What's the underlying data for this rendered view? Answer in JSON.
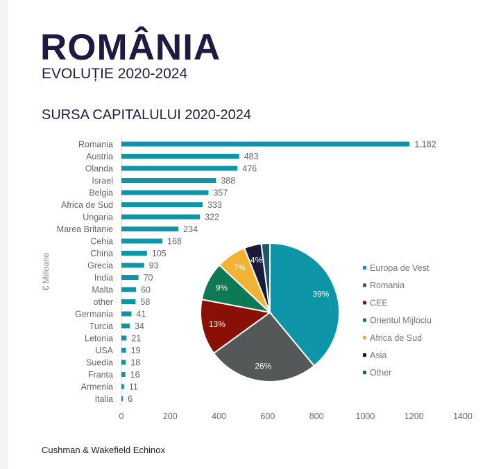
{
  "header": {
    "title": "ROMÂNIA",
    "subtitle": "EVOLUȚIE 2020-2024"
  },
  "footer": {
    "source": "Cushman & Wakefield Echinox"
  },
  "colors": {
    "bar": "#0e95a8",
    "title": "#1e1a44"
  },
  "chart_data": [
    {
      "type": "bar",
      "orientation": "horizontal",
      "title": "SURSA CAPITALULUI 2020-2024",
      "ylabel": "€ Milioane",
      "xlabel": "",
      "categories": [
        "Romania",
        "Austria",
        "Olanda",
        "Israel",
        "Belgia",
        "Africa de Sud",
        "Ungaria",
        "Marea Britanie",
        "Cehia",
        "China",
        "Grecia",
        "India",
        "Malta",
        "other",
        "Germania",
        "Turcia",
        "Letonia",
        "USA",
        "Suedia",
        "Franta",
        "Armenia",
        "Italia"
      ],
      "values": [
        1182,
        483,
        476,
        388,
        357,
        333,
        322,
        234,
        168,
        105,
        93,
        70,
        60,
        58,
        41,
        34,
        21,
        19,
        18,
        16,
        11,
        6
      ],
      "value_labels": [
        "1,182",
        "483",
        "476",
        "388",
        "357",
        "333",
        "322",
        "234",
        "168",
        "105",
        "93",
        "70",
        "60",
        "58",
        "41",
        "34",
        "21",
        "19",
        "18",
        "16",
        "11",
        "6"
      ],
      "xlim": [
        0,
        1400
      ],
      "xticks": [
        "0",
        "200",
        "400",
        "600",
        "800",
        "1000",
        "1200",
        "1400"
      ]
    },
    {
      "type": "pie",
      "labels": [
        "Europa de Vest",
        "Romania",
        "CEE",
        "Orientul Mijlociu",
        "Africa de Sud",
        "Asia",
        "Other"
      ],
      "values": [
        39,
        26,
        13,
        9,
        7,
        4,
        2
      ],
      "value_labels": [
        "39%",
        "26%",
        "13%",
        "9%",
        "7%",
        "4%",
        ""
      ],
      "colors": [
        "#0e95a8",
        "#555859",
        "#8a0f05",
        "#0e7a55",
        "#f2b234",
        "#1b1a3d",
        "#135b6e"
      ],
      "legend": "right"
    }
  ]
}
